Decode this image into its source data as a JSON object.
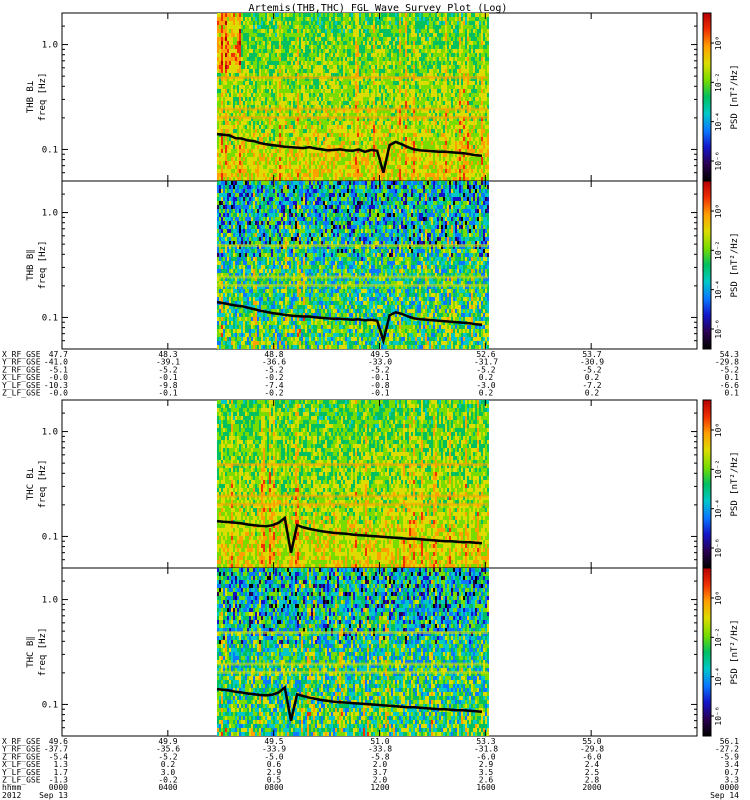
{
  "chart_data": {
    "type": "heatmap",
    "title": "Artemis(THB,THC) FGL Wave Survey Plot (Log)",
    "panels": [
      {
        "id": "thb-bperp",
        "probe": "THB",
        "ylabel_1": "THB B⊥",
        "ylabel_2": "freq [Hz]",
        "yscale": "log",
        "ylim": [
          0.05,
          2.0
        ],
        "yticks": [
          "1.0",
          "0.1"
        ],
        "zlabel": "PSD [nT²/Hz]",
        "zticks": [
          "10⁰",
          "10⁻²",
          "10⁻⁴",
          "10⁻⁶"
        ],
        "data_range_hhmm": [
          "0600",
          "1600"
        ],
        "line_freq": [
          0.14,
          0.138,
          0.136,
          0.128,
          0.127,
          0.122,
          0.12,
          0.115,
          0.112,
          0.11,
          0.108,
          0.106,
          0.105,
          0.104,
          0.103,
          0.105,
          0.102,
          0.1,
          0.098,
          0.099,
          0.1,
          0.098,
          0.097,
          0.1,
          0.095,
          0.099,
          0.097,
          0.06,
          0.11,
          0.118,
          0.112,
          0.105,
          0.1,
          0.098,
          0.097,
          0.096,
          0.095,
          0.095,
          0.094,
          0.093,
          0.092,
          0.09,
          0.088,
          0.087
        ]
      },
      {
        "id": "thb-bpar",
        "probe": "THB",
        "ylabel_1": "THB B∥",
        "ylabel_2": "freq [Hz]",
        "yscale": "log",
        "ylim": [
          0.05,
          2.0
        ],
        "yticks": [
          "1.0",
          "0.1"
        ],
        "zlabel": "PSD [nT²/Hz]",
        "zticks": [
          "10⁰",
          "10⁻²",
          "10⁻⁴",
          "10⁻⁶"
        ],
        "data_range_hhmm": [
          "0600",
          "1600"
        ],
        "line_freq": [
          0.14,
          0.137,
          0.133,
          0.13,
          0.128,
          0.124,
          0.12,
          0.116,
          0.113,
          0.11,
          0.108,
          0.106,
          0.104,
          0.103,
          0.102,
          0.102,
          0.1,
          0.099,
          0.098,
          0.097,
          0.097,
          0.096,
          0.095,
          0.096,
          0.094,
          0.095,
          0.093,
          0.06,
          0.105,
          0.112,
          0.108,
          0.102,
          0.098,
          0.096,
          0.095,
          0.094,
          0.093,
          0.092,
          0.091,
          0.09,
          0.089,
          0.088,
          0.086,
          0.085
        ]
      },
      {
        "id": "thc-bperp",
        "probe": "THC",
        "ylabel_1": "THC B⊥",
        "ylabel_2": "freq [Hz]",
        "yscale": "log",
        "ylim": [
          0.05,
          2.0
        ],
        "yticks": [
          "1.0",
          "0.1"
        ],
        "zlabel": "PSD [nT²/Hz]",
        "zticks": [
          "10⁰",
          "10⁻²",
          "10⁻⁴",
          "10⁻⁶"
        ],
        "data_range_hhmm": [
          "0600",
          "1600"
        ],
        "line_freq": [
          0.14,
          0.138,
          0.137,
          0.135,
          0.133,
          0.13,
          0.128,
          0.126,
          0.125,
          0.128,
          0.135,
          0.15,
          0.07,
          0.128,
          0.122,
          0.118,
          0.115,
          0.112,
          0.11,
          0.108,
          0.107,
          0.106,
          0.104,
          0.103,
          0.102,
          0.101,
          0.1,
          0.099,
          0.098,
          0.097,
          0.096,
          0.095,
          0.095,
          0.094,
          0.093,
          0.092,
          0.091,
          0.09,
          0.09,
          0.089,
          0.088,
          0.088,
          0.087,
          0.086
        ]
      },
      {
        "id": "thc-bpar",
        "probe": "THC",
        "ylabel_1": "THC B∥",
        "ylabel_2": "freq [Hz]",
        "yscale": "log",
        "ylim": [
          0.05,
          2.0
        ],
        "yticks": [
          "1.0",
          "0.1"
        ],
        "zlabel": "PSD [nT²/Hz]",
        "zticks": [
          "10⁰",
          "10⁻²",
          "10⁻⁴",
          "10⁻⁶"
        ],
        "data_range_hhmm": [
          "0600",
          "1600"
        ],
        "line_freq": [
          0.14,
          0.138,
          0.136,
          0.132,
          0.13,
          0.127,
          0.125,
          0.123,
          0.122,
          0.124,
          0.13,
          0.145,
          0.07,
          0.125,
          0.12,
          0.116,
          0.113,
          0.11,
          0.108,
          0.106,
          0.105,
          0.104,
          0.103,
          0.102,
          0.101,
          0.1,
          0.099,
          0.098,
          0.097,
          0.096,
          0.095,
          0.094,
          0.094,
          0.093,
          0.092,
          0.091,
          0.09,
          0.09,
          0.089,
          0.088,
          0.088,
          0.087,
          0.086,
          0.085
        ]
      }
    ],
    "x_time": [
      "0000",
      "0400",
      "0800",
      "1200",
      "1600",
      "2000",
      "0000"
    ],
    "ephemeris_blocks": [
      {
        "id": "thb-ephem",
        "rows": [
          {
            "label": "X_RF_GSE",
            "values": [
              "47.7",
              "48.3",
              "48.8",
              "49.5",
              "52.6",
              "53.7",
              "54.3"
            ]
          },
          {
            "label": "Y_RF_GSE",
            "values": [
              "-41.0",
              "-39.1",
              "-36.6",
              "-33.0",
              "-31.7",
              "-30.9",
              "-29.8"
            ]
          },
          {
            "label": "Z_RF_GSE",
            "values": [
              "-5.1",
              "-5.2",
              "-5.2",
              "-5.2",
              "-5.2",
              "-5.2",
              "-5.2"
            ]
          },
          {
            "label": "X_LF_GSE",
            "values": [
              "-0.0",
              "-0.1",
              "-0.2",
              "-0.1",
              "0.2",
              "0.2",
              "0.1"
            ]
          },
          {
            "label": "Y_LF_GSE",
            "values": [
              "-10.3",
              "-9.8",
              "-7.4",
              "-0.8",
              "-3.0",
              "-7.2",
              "-6.6"
            ]
          },
          {
            "label": "Z_LF_GSE",
            "values": [
              "-0.0",
              "-0.1",
              "-0.2",
              "-0.1",
              "0.2",
              "0.2",
              "0.1"
            ]
          }
        ]
      },
      {
        "id": "thc-ephem",
        "rows": [
          {
            "label": "X_RF_GSE",
            "values": [
              "49.6",
              "49.9",
              "49.5",
              "51.0",
              "53.3",
              "55.0",
              "56.1"
            ]
          },
          {
            "label": "Y_RF_GSE",
            "values": [
              "-37.7",
              "-35.6",
              "-33.9",
              "-33.8",
              "-31.8",
              "-29.8",
              "-27.2"
            ]
          },
          {
            "label": "Z_RF_GSE",
            "values": [
              "-5.4",
              "-5.2",
              "-5.0",
              "-5.8",
              "-6.0",
              "-6.0",
              "-5.9"
            ]
          },
          {
            "label": "X_LF_GSE",
            "values": [
              "1.3",
              "0.2",
              "0.6",
              "2.0",
              "2.9",
              "2.4",
              "3.4"
            ]
          },
          {
            "label": "Y_LF_GSE",
            "values": [
              "1.7",
              "3.0",
              "2.9",
              "3.7",
              "3.5",
              "2.5",
              "0.7"
            ]
          },
          {
            "label": "Z_LF_GSE",
            "values": [
              "-1.3",
              "-0.2",
              "0.5",
              "2.0",
              "2.6",
              "2.8",
              "3.3"
            ]
          }
        ]
      }
    ],
    "time_rows": [
      {
        "label": "hhmm",
        "values": [
          "0000",
          "0400",
          "0800",
          "1200",
          "1600",
          "2000",
          "0000"
        ]
      },
      {
        "label": "2012",
        "values": [
          "Sep 13",
          "",
          "",
          "",
          "",
          "",
          "Sep 14"
        ]
      }
    ],
    "colormap": [
      "#000000",
      "#2a0050",
      "#1414c8",
      "#0a78ff",
      "#00c8c8",
      "#00c060",
      "#78dc00",
      "#dcdc00",
      "#ffa000",
      "#f03000",
      "#b40000"
    ],
    "grid": false,
    "legend": "right colorbar per panel"
  }
}
